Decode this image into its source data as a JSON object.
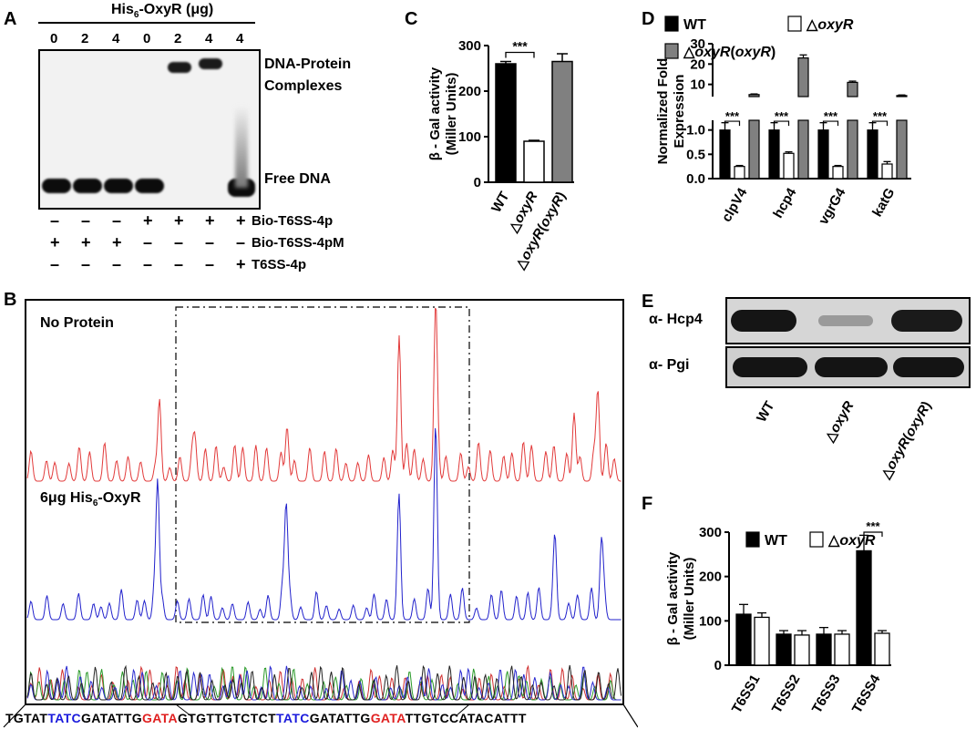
{
  "panelA": {
    "letter": "A",
    "title": "His",
    "title_sub": "6",
    "title_rest": "-OxyR (μg)",
    "lane_amounts": [
      "0",
      "2",
      "4",
      "0",
      "2",
      "4",
      "4"
    ],
    "complex_label_1": "DNA-Protein",
    "complex_label_2": "Complexes",
    "free_label": "Free DNA",
    "rows": [
      {
        "label": "Bio-T6SS-4p",
        "marks": [
          "–",
          "–",
          "–",
          "+",
          "+",
          "+",
          "+"
        ]
      },
      {
        "label": "Bio-T6SS-4pM",
        "marks": [
          "+",
          "+",
          "+",
          "–",
          "–",
          "–",
          "–"
        ]
      },
      {
        "label": "T6SS-4p",
        "marks": [
          "–",
          "–",
          "–",
          "–",
          "–",
          "–",
          "+"
        ]
      }
    ]
  },
  "panelB": {
    "letter": "B",
    "trace1_label": "No Protein",
    "trace2_label_a": "6μg His",
    "trace2_label_sub": "6",
    "trace2_label_b": "-OxyR",
    "sequence": [
      {
        "t": "TGTAT",
        "c": "#000000"
      },
      {
        "t": "TATC",
        "c": "#1a1adc"
      },
      {
        "t": "GATATTG",
        "c": "#000000"
      },
      {
        "t": "GATA",
        "c": "#e02020"
      },
      {
        "t": "GTGTTGTCTCT",
        "c": "#000000"
      },
      {
        "t": "TATC",
        "c": "#1a1adc"
      },
      {
        "t": "GATATTG",
        "c": "#000000"
      },
      {
        "t": "GATA",
        "c": "#e02020"
      },
      {
        "t": "TTGTCCATACATTT",
        "c": "#000000"
      }
    ]
  },
  "panelC": {
    "letter": "C",
    "chart_data": {
      "type": "bar",
      "categories": [
        "WT",
        "△oxyR",
        "△oxyR(oxyR)"
      ],
      "values": [
        260,
        90,
        265
      ],
      "errors": [
        5,
        2,
        17
      ],
      "ylabel_1": "β - Gal activity",
      "ylabel_2": "(Miller Units)",
      "ylim": [
        0,
        300
      ],
      "yticks": [
        "0",
        "100",
        "200",
        "300"
      ],
      "significance": "***",
      "colors": [
        "#000000",
        "#ffffff",
        "#808080"
      ]
    }
  },
  "panelD": {
    "letter": "D",
    "legend": [
      "WT",
      "△oxyR",
      "△oxyR(oxyR)"
    ],
    "ylabel_1": "Normalized Fold",
    "ylabel_2": "Expression",
    "chart_data": {
      "type": "bar",
      "categories": [
        "clpV4",
        "hcp4",
        "vgrG4",
        "katG"
      ],
      "series": [
        {
          "name": "WT",
          "values": [
            1.0,
            1.0,
            1.0,
            1.0
          ],
          "errors": [
            0.15,
            0.15,
            0.15,
            0.15
          ]
        },
        {
          "name": "△oxyR",
          "values": [
            0.25,
            0.52,
            0.25,
            0.3
          ],
          "errors": [
            0.02,
            0.03,
            0.02,
            0.05
          ]
        },
        {
          "name": "△oxyR(oxyR)",
          "values": [
            5.0,
            23.0,
            11.0,
            4.5
          ],
          "errors": [
            0.3,
            1.5,
            0.6,
            0.3
          ]
        }
      ],
      "yticks_low": [
        "0.0",
        "0.5",
        "1.0"
      ],
      "yticks_high": [
        "10",
        "20",
        "30"
      ],
      "significance": [
        "***",
        "***",
        "***",
        "***"
      ]
    }
  },
  "panelE": {
    "letter": "E",
    "blot1_label": "α- Hcp4",
    "blot2_label": "α- Pgi",
    "lanes": [
      "WT",
      "△oxyR",
      "△oxyR(oxyR)"
    ]
  },
  "panelF": {
    "letter": "F",
    "legend": [
      "WT",
      "△oxyR"
    ],
    "chart_data": {
      "type": "bar",
      "categories": [
        "T6SS1",
        "T6SS2",
        "T6SS3",
        "T6SS4"
      ],
      "series": [
        {
          "name": "WT",
          "values": [
            115,
            70,
            70,
            258
          ],
          "errors": [
            22,
            8,
            15,
            35
          ]
        },
        {
          "name": "△oxyR",
          "values": [
            108,
            68,
            70,
            72
          ],
          "errors": [
            10,
            10,
            8,
            6
          ]
        }
      ],
      "ylabel_1": "β - Gal activity",
      "ylabel_2": "(Miller Units)",
      "ylim": [
        0,
        300
      ],
      "yticks": [
        "0",
        "100",
        "200",
        "300"
      ],
      "significance": "***"
    }
  }
}
